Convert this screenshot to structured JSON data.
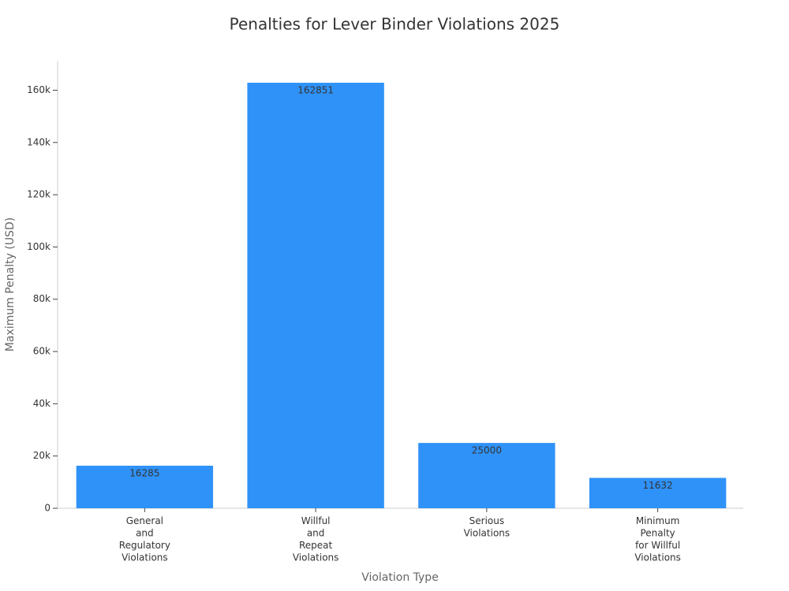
{
  "chart_data": {
    "type": "bar",
    "title": "Penalties for Lever Binder Violations 2025",
    "x_label": "Violation Type",
    "y_label": "Maximum Penalty (USD)",
    "categories": [
      "General\nand\nRegulatory\nViolations",
      "Willful\nand\nRepeat\nViolations",
      "Serious\nViolations",
      "Minimum\nPenalty\nfor Willful\nViolations"
    ],
    "values": [
      16285,
      162851,
      25000,
      11632
    ],
    "color": "#2f92f8",
    "ylim": [
      0,
      171000
    ],
    "yticks": [
      0,
      {
        "value": 20000,
        "label": "20k"
      },
      {
        "value": 40000,
        "label": "40k"
      },
      {
        "value": 60000,
        "label": "60k"
      },
      {
        "value": 80000,
        "label": "80k"
      },
      {
        "value": 100000,
        "label": "100k"
      },
      {
        "value": 120000,
        "label": "120k"
      },
      {
        "value": 140000,
        "label": "140k"
      },
      {
        "value": 160000,
        "label": "160k"
      }
    ],
    "grid": false
  }
}
